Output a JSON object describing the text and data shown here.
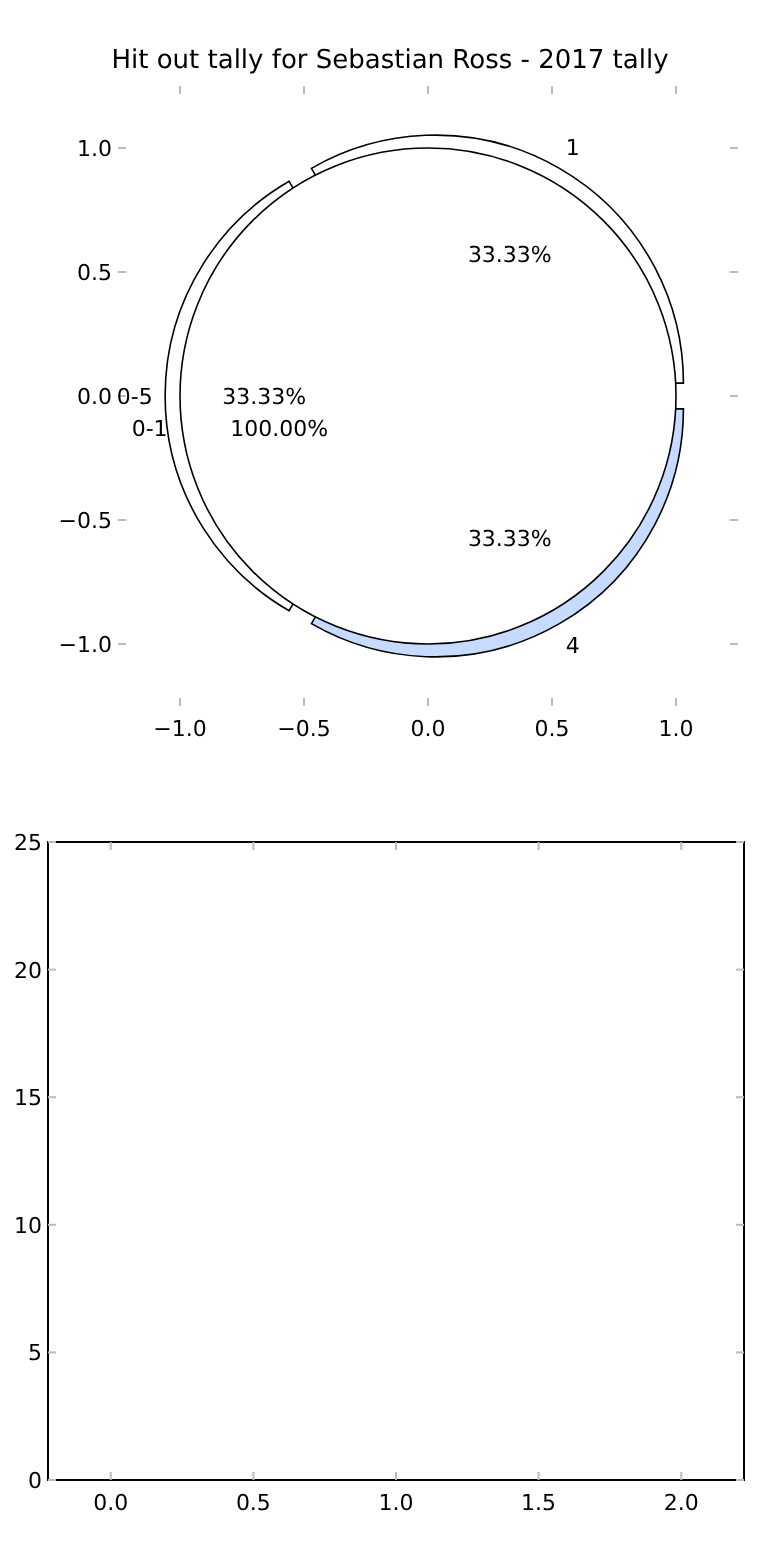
{
  "chart_data": [
    {
      "type": "pie",
      "title": "Hit out tally for Sebastian Ross - 2017 tally",
      "categories": [
        "1",
        "0-5",
        "4"
      ],
      "values": [
        33.33,
        33.33,
        33.33
      ],
      "colors": [
        "#ffffff",
        "#ffffff",
        "#c6dbff"
      ],
      "value_labels": [
        "33.33%",
        "33.33%",
        "33.33%"
      ],
      "annotations": [
        "−1.0",
        "−0.5",
        "0.0",
        "0.5",
        "1.0",
        "−1.0",
        "−0.5",
        "0.0",
        "0.5",
        "1.0"
      ]
    },
    {
      "type": "pie",
      "categories": [
        "0-1"
      ],
      "values": [
        100
      ],
      "colors": [
        "#ffffff"
      ],
      "value_labels": [
        "100.00%"
      ]
    },
    {
      "type": "scatter",
      "xlim": [
        -0.22,
        2.22
      ],
      "ylim": [
        0,
        25
      ],
      "xticks": [
        {
          "value": 0,
          "label": "0.0"
        },
        0.5,
        {
          "value": 1,
          "label": "1.0"
        },
        1.5,
        {
          "value": 2,
          "label": "2.0"
        }
      ],
      "yticks": [
        0,
        5,
        10,
        15,
        20,
        25
      ]
    }
  ]
}
